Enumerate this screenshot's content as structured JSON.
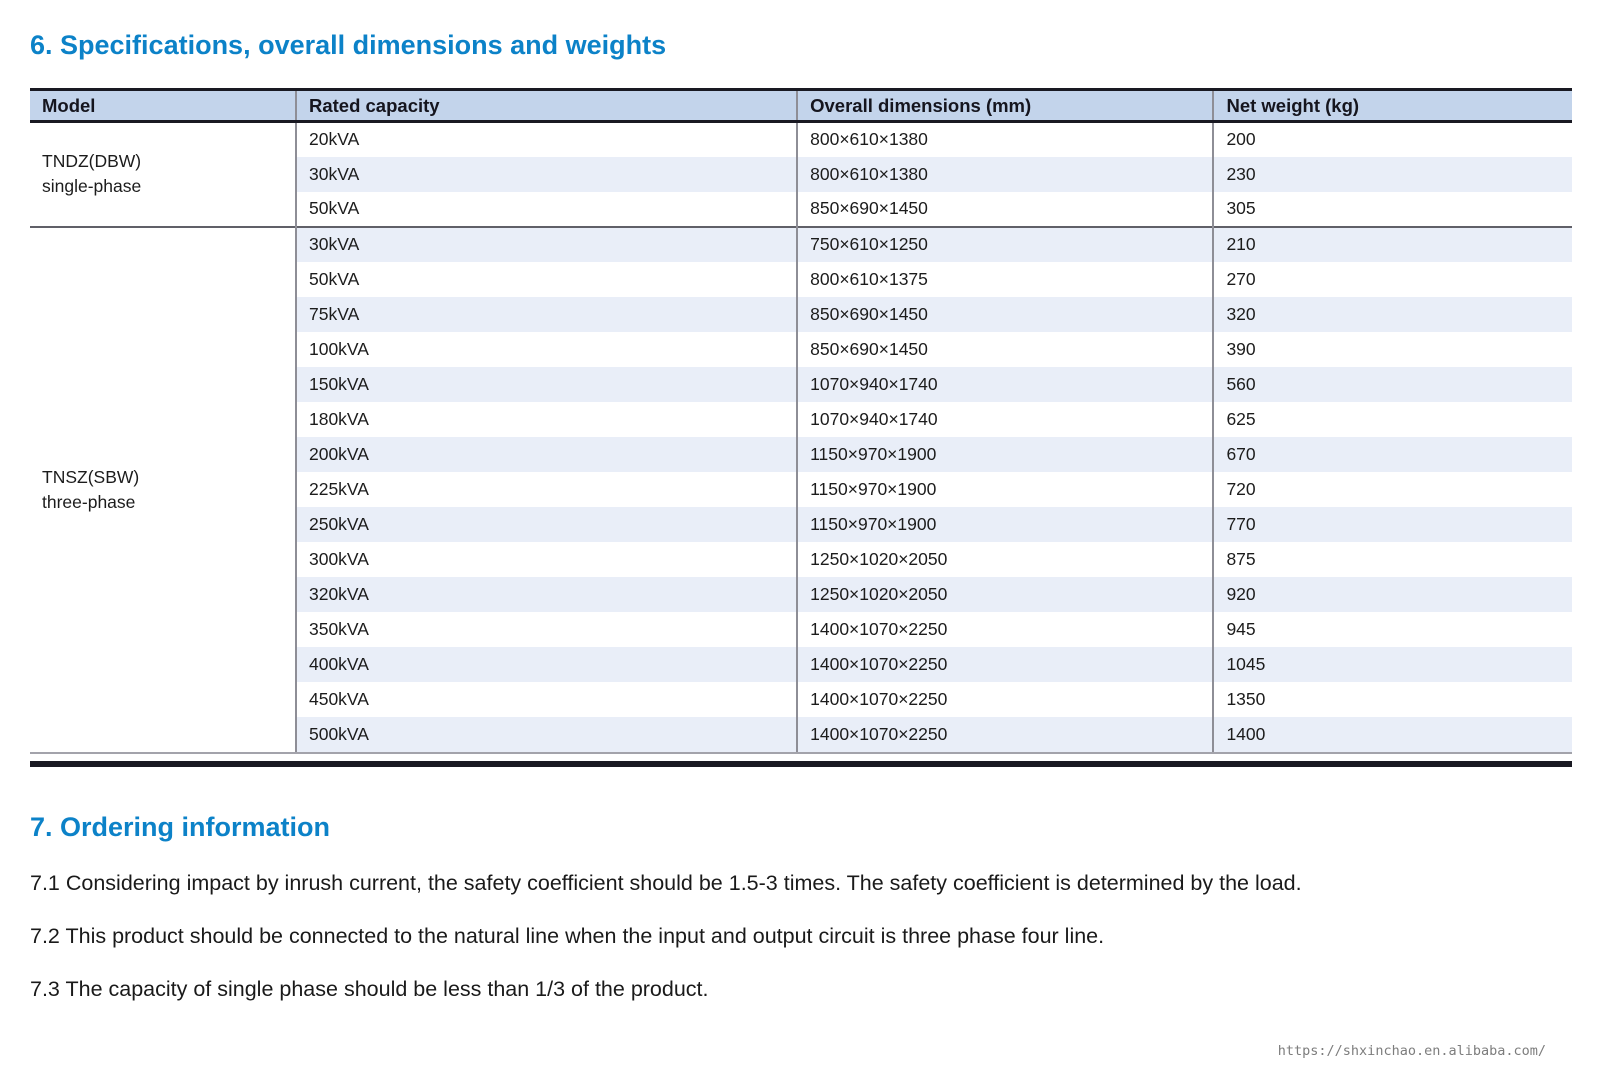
{
  "colors": {
    "accent": "#0c82c8",
    "header_bg": "#c3d4eb",
    "stripe": "#e9eef8",
    "dark": "#191922",
    "grid": "#8e8e96"
  },
  "sections": {
    "specs": {
      "title": "6. Specifications, overall dimensions and weights"
    },
    "ordering": {
      "title": "7. Ordering information",
      "notes": [
        "7.1 Considering impact by inrush current, the safety coefficient should be 1.5-3 times. The safety coefficient is determined by the load.",
        "7.2 This product should be connected to the natural line when the input and output circuit is three phase four line.",
        "7.3 The capacity of single phase should be less than 1/3 of the product."
      ]
    }
  },
  "table": {
    "headers": [
      "Model",
      "Rated capacity",
      "Overall dimensions (mm)",
      "Net weight (kg)"
    ],
    "groups": [
      {
        "model_line1": "TNDZ(DBW)",
        "model_line2": "single-phase",
        "rows": [
          [
            "20kVA",
            "800×610×1380",
            "200"
          ],
          [
            "30kVA",
            "800×610×1380",
            "230"
          ],
          [
            "50kVA",
            "850×690×1450",
            "305"
          ]
        ]
      },
      {
        "model_line1": "TNSZ(SBW)",
        "model_line2": "three-phase",
        "rows": [
          [
            "30kVA",
            "750×610×1250",
            "210"
          ],
          [
            "50kVA",
            "800×610×1375",
            "270"
          ],
          [
            "75kVA",
            "850×690×1450",
            "320"
          ],
          [
            "100kVA",
            "850×690×1450",
            "390"
          ],
          [
            "150kVA",
            "1070×940×1740",
            "560"
          ],
          [
            "180kVA",
            "1070×940×1740",
            "625"
          ],
          [
            "200kVA",
            "1150×970×1900",
            "670"
          ],
          [
            "225kVA",
            "1150×970×1900",
            "720"
          ],
          [
            "250kVA",
            "1150×970×1900",
            "770"
          ],
          [
            "300kVA",
            "1250×1020×2050",
            "875"
          ],
          [
            "320kVA",
            "1250×1020×2050",
            "920"
          ],
          [
            "350kVA",
            "1400×1070×2250",
            "945"
          ],
          [
            "400kVA",
            "1400×1070×2250",
            "1045"
          ],
          [
            "450kVA",
            "1400×1070×2250",
            "1350"
          ],
          [
            "500kVA",
            "1400×1070×2250",
            "1400"
          ]
        ]
      }
    ]
  },
  "footer": {
    "url": "https://shxinchao.en.alibaba.com/"
  }
}
